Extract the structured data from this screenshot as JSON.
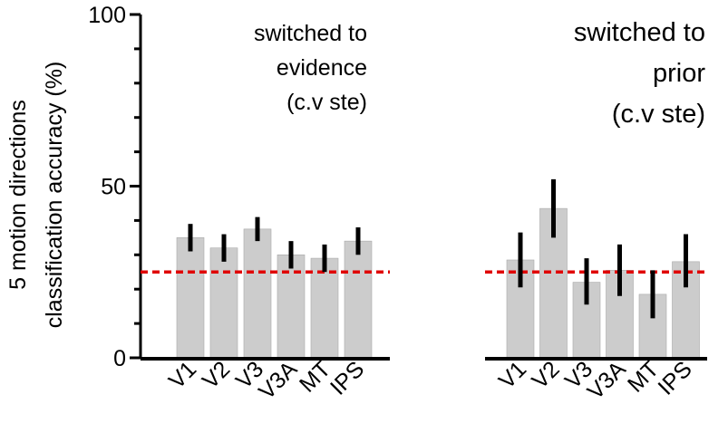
{
  "chart_data": [
    {
      "type": "bar",
      "title_lines": [
        "switched to",
        "evidence",
        "(c.v ste)"
      ],
      "categories": [
        "V1",
        "V2",
        "V3",
        "V3A",
        "MT",
        "IPS"
      ],
      "values": [
        35,
        32,
        37.5,
        30,
        29,
        34
      ],
      "error_low": [
        31,
        28,
        34,
        26,
        25,
        30
      ],
      "error_high": [
        39,
        36,
        41,
        34,
        33,
        38
      ],
      "chance_level": 25,
      "ylim": [
        0,
        100
      ],
      "yticks": [
        0,
        50,
        100
      ],
      "ylabel_lines": [
        "5 motion directions",
        "classification accuracy (%)"
      ],
      "bar_color": "#cccccc",
      "chance_color": "#e00000"
    },
    {
      "type": "bar",
      "title_lines": [
        "switched to",
        "prior",
        "(c.v ste)"
      ],
      "categories": [
        "V1",
        "V2",
        "V3",
        "V3A",
        "MT",
        "IPS"
      ],
      "values": [
        28.5,
        43.5,
        22,
        25.5,
        18.5,
        28
      ],
      "error_low": [
        20.5,
        35,
        15.5,
        18,
        11.5,
        20.5
      ],
      "error_high": [
        36.5,
        52,
        29,
        33,
        25.5,
        36
      ],
      "chance_level": 25,
      "ylim": [
        0,
        100
      ],
      "bar_color": "#cccccc",
      "chance_color": "#e00000"
    }
  ]
}
